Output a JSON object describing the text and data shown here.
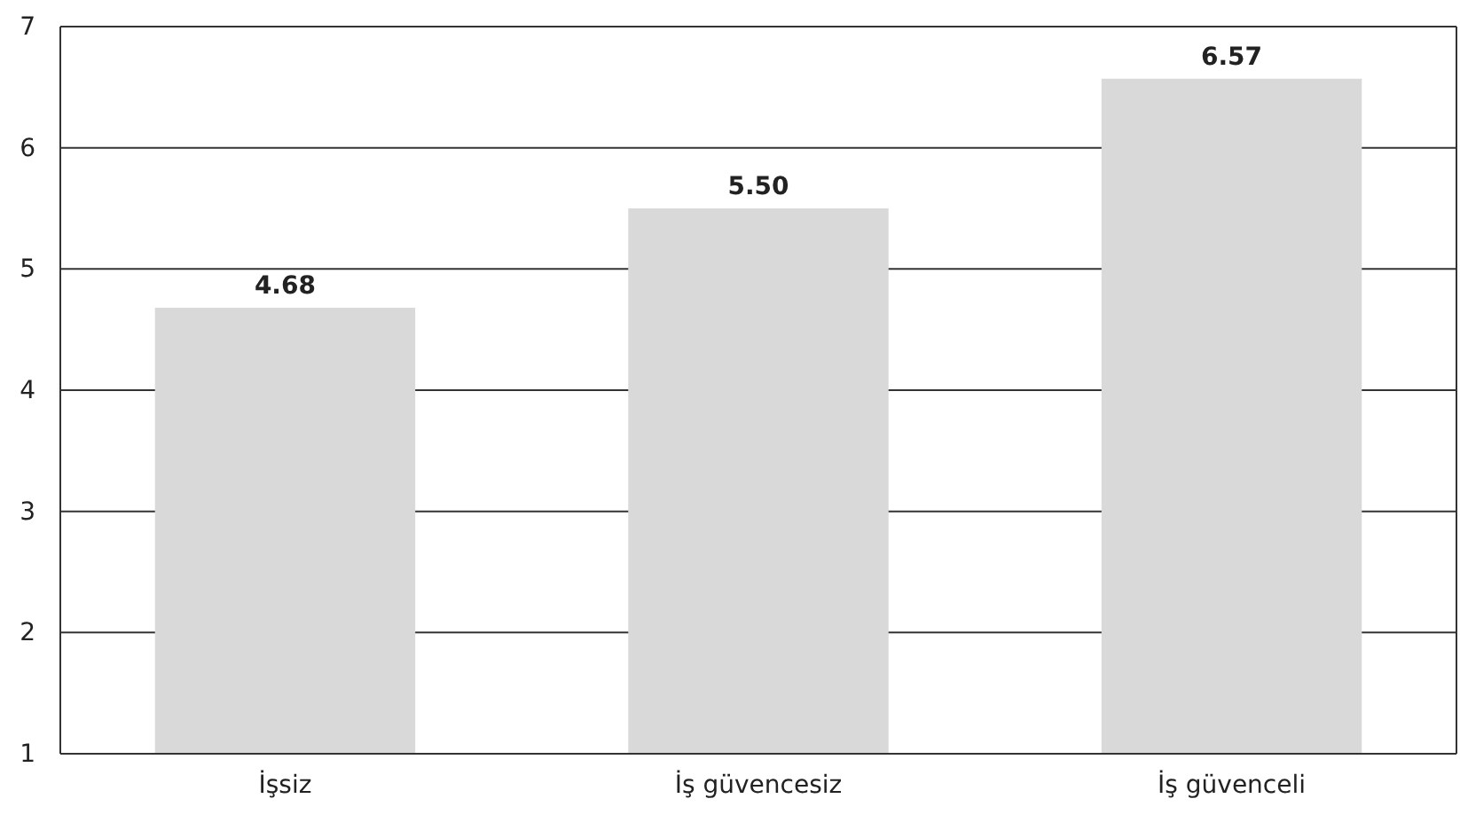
{
  "chart_data": {
    "type": "bar",
    "categories": [
      "İşsiz",
      "İş güvencesiz",
      "İş güvenceli"
    ],
    "values": [
      4.68,
      5.5,
      6.57
    ],
    "value_labels": [
      "4.68",
      "5.50",
      "6.57"
    ],
    "color": "#d9d9d9",
    "ylim": [
      1,
      7
    ],
    "yticks": [
      1,
      2,
      3,
      4,
      5,
      6,
      7
    ],
    "grid": "y"
  }
}
